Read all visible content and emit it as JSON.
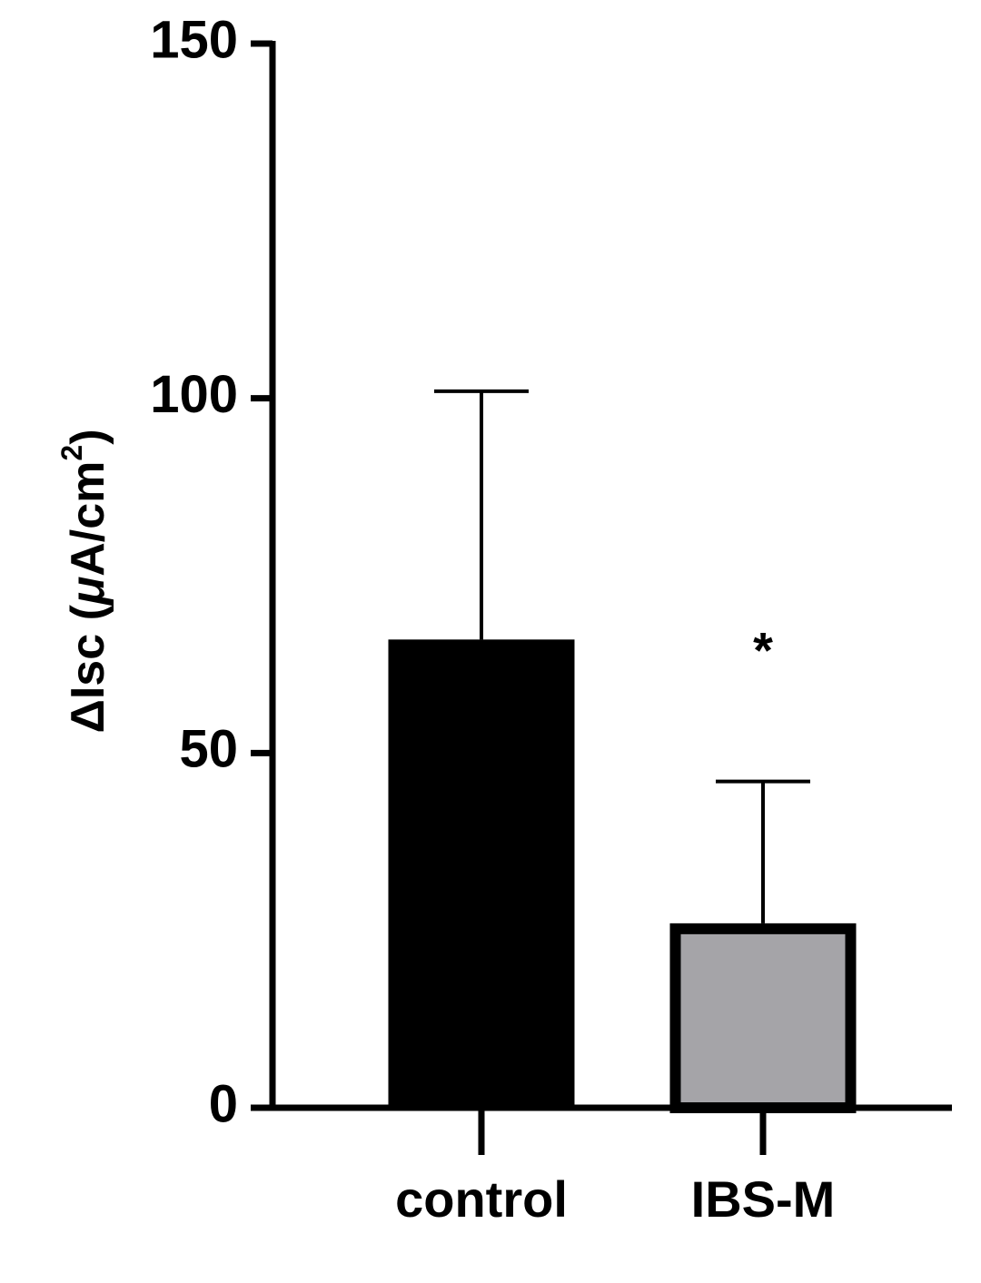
{
  "chart_data": {
    "type": "bar",
    "y_label": {
      "prefix": "ΔIsc (",
      "mu": "μ",
      "unit": "A/cm",
      "sup": "2",
      "suffix": ")"
    },
    "categories": [
      "control",
      "IBS-M"
    ],
    "values": [
      66,
      26
    ],
    "errors": [
      35,
      20
    ],
    "colors": [
      "#000000",
      "#a5a4a8"
    ],
    "annotations": [
      {
        "text": "*",
        "category": 1
      }
    ],
    "ylim": [
      0,
      150
    ],
    "yticks": [
      0,
      50,
      100,
      150
    ],
    "grid": false
  }
}
